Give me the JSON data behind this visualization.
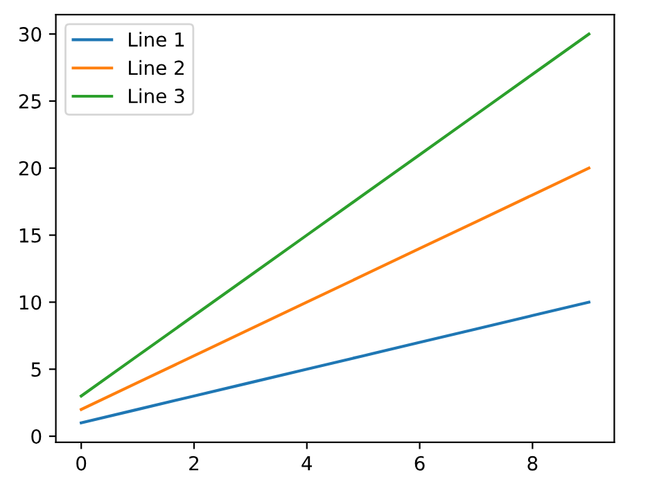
{
  "chart_data": {
    "type": "line",
    "x": [
      0,
      1,
      2,
      3,
      4,
      5,
      6,
      7,
      8,
      9
    ],
    "series": [
      {
        "name": "Line 1",
        "color": "#1f77b4",
        "values": [
          1,
          2,
          3,
          4,
          5,
          6,
          7,
          8,
          9,
          10
        ]
      },
      {
        "name": "Line 2",
        "color": "#ff7f0e",
        "values": [
          2,
          4,
          6,
          8,
          10,
          12,
          14,
          16,
          18,
          20
        ]
      },
      {
        "name": "Line 3",
        "color": "#2ca02c",
        "values": [
          3,
          6,
          9,
          12,
          15,
          18,
          21,
          24,
          27,
          30
        ]
      }
    ],
    "xlim": [
      -0.45,
      9.45
    ],
    "ylim": [
      -0.45,
      31.45
    ],
    "xticks": [
      0,
      2,
      4,
      6,
      8
    ],
    "yticks": [
      0,
      5,
      10,
      15,
      20,
      25,
      30
    ],
    "legend": "top left",
    "grid": false
  }
}
